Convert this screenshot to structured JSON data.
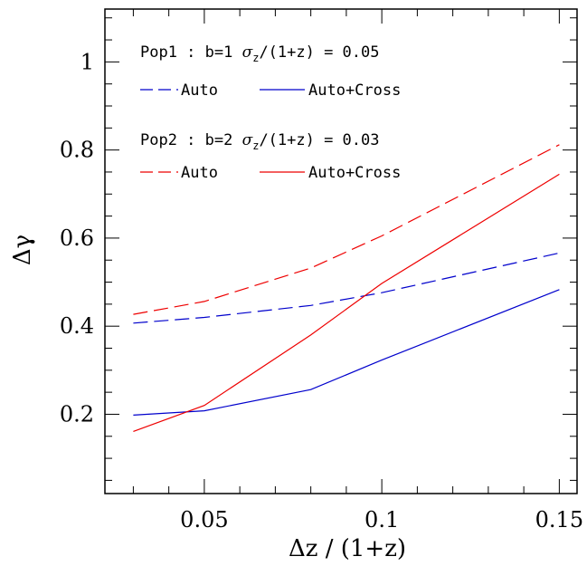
{
  "chart_data": {
    "type": "line",
    "xlabel": "Δz / (1+z)",
    "ylabel": "Δγ",
    "xlim": [
      0.022,
      0.155
    ],
    "ylim": [
      0.02,
      1.12
    ],
    "x_ticks": [
      0.05,
      0.1,
      0.15
    ],
    "x_tick_labels": [
      "0.05",
      "0.1",
      "0.15"
    ],
    "y_ticks": [
      0.2,
      0.4,
      0.6,
      0.8,
      1.0
    ],
    "y_tick_labels": [
      "0.2",
      "0.4",
      "0.6",
      "0.8",
      "1"
    ],
    "grid": false,
    "legend": {
      "pop1_title_pre": "Pop1 : b=1 ",
      "pop1_title_sigma": "σ",
      "pop1_title_sub": "z",
      "pop1_title_post": "/(1+z) = 0.05",
      "pop2_title_pre": "Pop2 : b=2 ",
      "pop2_title_sigma": "σ",
      "pop2_title_sub": "z",
      "pop2_title_post": "/(1+z) = 0.03",
      "auto_label": "Auto",
      "cross_label": "Auto+Cross"
    },
    "colors": {
      "pop1": "#0000cc",
      "pop2": "#ee0000"
    },
    "series": [
      {
        "name": "Auto",
        "group": "pop1",
        "style": "dashed",
        "x": [
          0.03,
          0.05,
          0.08,
          0.1,
          0.15
        ],
        "y": [
          0.407,
          0.42,
          0.447,
          0.476,
          0.566
        ]
      },
      {
        "name": "Auto+Cross",
        "group": "pop1",
        "style": "solid",
        "x": [
          0.03,
          0.05,
          0.08,
          0.1,
          0.15
        ],
        "y": [
          0.198,
          0.208,
          0.256,
          0.323,
          0.483
        ]
      },
      {
        "name": "Auto",
        "group": "pop2",
        "style": "dashed",
        "x": [
          0.03,
          0.05,
          0.08,
          0.1,
          0.15
        ],
        "y": [
          0.427,
          0.456,
          0.532,
          0.605,
          0.812
        ]
      },
      {
        "name": "Auto+Cross",
        "group": "pop2",
        "style": "solid",
        "x": [
          0.03,
          0.05,
          0.08,
          0.1,
          0.15
        ],
        "y": [
          0.161,
          0.22,
          0.38,
          0.497,
          0.745
        ]
      }
    ]
  }
}
